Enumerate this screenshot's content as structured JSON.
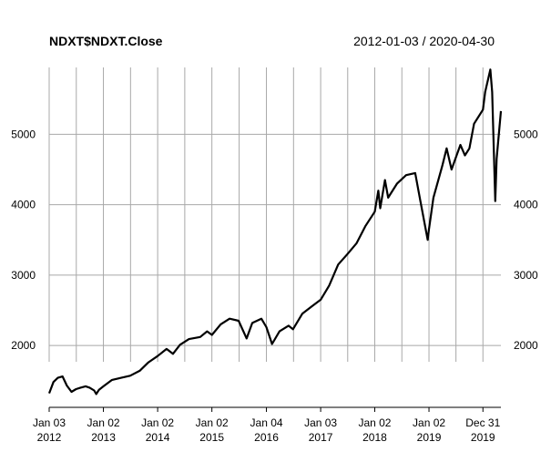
{
  "chart_data": {
    "type": "line",
    "title": "NDXT$NDXT.Close",
    "date_range": "2012-01-03 / 2020-04-30",
    "xlabel": "",
    "ylabel": "",
    "xlim": [
      "2012-01-03",
      "2020-04-30"
    ],
    "ylim": [
      1250,
      5950
    ],
    "y_ticks": [
      2000,
      3000,
      4000,
      5000
    ],
    "x_ticks": [
      {
        "date": "2012-01-03",
        "line1": "Jan 03",
        "line2": "2012"
      },
      {
        "date": "2013-01-02",
        "line1": "Jan 02",
        "line2": "2013"
      },
      {
        "date": "2014-01-02",
        "line1": "Jan 02",
        "line2": "2014"
      },
      {
        "date": "2015-01-02",
        "line1": "Jan 02",
        "line2": "2015"
      },
      {
        "date": "2016-01-04",
        "line1": "Jan 04",
        "line2": "2016"
      },
      {
        "date": "2017-01-03",
        "line1": "Jan 03",
        "line2": "2017"
      },
      {
        "date": "2018-01-02",
        "line1": "Jan 02",
        "line2": "2018"
      },
      {
        "date": "2019-01-02",
        "line1": "Jan 02",
        "line2": "2019"
      },
      {
        "date": "2019-12-31",
        "line1": "Dec 31",
        "line2": "2019"
      }
    ],
    "grid": true,
    "series": [
      {
        "x": [
          "2012-01-03",
          "2012-02-01",
          "2012-03-01",
          "2012-04-02",
          "2012-05-01",
          "2012-06-01",
          "2012-07-02",
          "2012-08-01",
          "2012-09-04",
          "2012-10-01",
          "2012-11-01",
          "2012-11-15",
          "2012-12-03",
          "2013-01-02",
          "2013-03-01",
          "2013-05-01",
          "2013-07-01",
          "2013-09-03",
          "2013-11-01",
          "2014-01-02",
          "2014-03-03",
          "2014-04-15",
          "2014-06-02",
          "2014-08-01",
          "2014-10-15",
          "2014-12-01",
          "2015-01-02",
          "2015-03-02",
          "2015-05-01",
          "2015-07-01",
          "2015-08-24",
          "2015-10-01",
          "2015-12-01",
          "2016-01-04",
          "2016-02-11",
          "2016-04-01",
          "2016-06-01",
          "2016-07-01",
          "2016-09-01",
          "2016-11-01",
          "2017-01-03",
          "2017-03-01",
          "2017-05-01",
          "2017-07-03",
          "2017-09-01",
          "2017-11-01",
          "2018-01-02",
          "2018-01-26",
          "2018-02-08",
          "2018-03-12",
          "2018-04-02",
          "2018-06-01",
          "2018-08-01",
          "2018-10-01",
          "2018-11-01",
          "2018-12-24",
          "2019-01-02",
          "2019-02-01",
          "2019-04-01",
          "2019-05-01",
          "2019-06-03",
          "2019-08-01",
          "2019-09-01",
          "2019-10-01",
          "2019-11-01",
          "2019-12-31",
          "2020-01-15",
          "2020-02-19",
          "2020-03-02",
          "2020-03-23",
          "2020-04-01",
          "2020-04-30"
        ],
        "values": [
          1320,
          1480,
          1540,
          1560,
          1430,
          1340,
          1380,
          1400,
          1420,
          1400,
          1360,
          1310,
          1370,
          1420,
          1510,
          1540,
          1570,
          1640,
          1760,
          1850,
          1950,
          1880,
          2010,
          2090,
          2120,
          2200,
          2150,
          2300,
          2380,
          2350,
          2100,
          2320,
          2380,
          2260,
          2020,
          2200,
          2280,
          2230,
          2450,
          2550,
          2650,
          2850,
          3150,
          3300,
          3450,
          3700,
          3900,
          4200,
          3950,
          4350,
          4100,
          4300,
          4420,
          4450,
          4100,
          3500,
          3650,
          4100,
          4550,
          4800,
          4500,
          4850,
          4700,
          4800,
          5150,
          5350,
          5600,
          5920,
          5600,
          4050,
          4650,
          5330
        ]
      }
    ]
  }
}
